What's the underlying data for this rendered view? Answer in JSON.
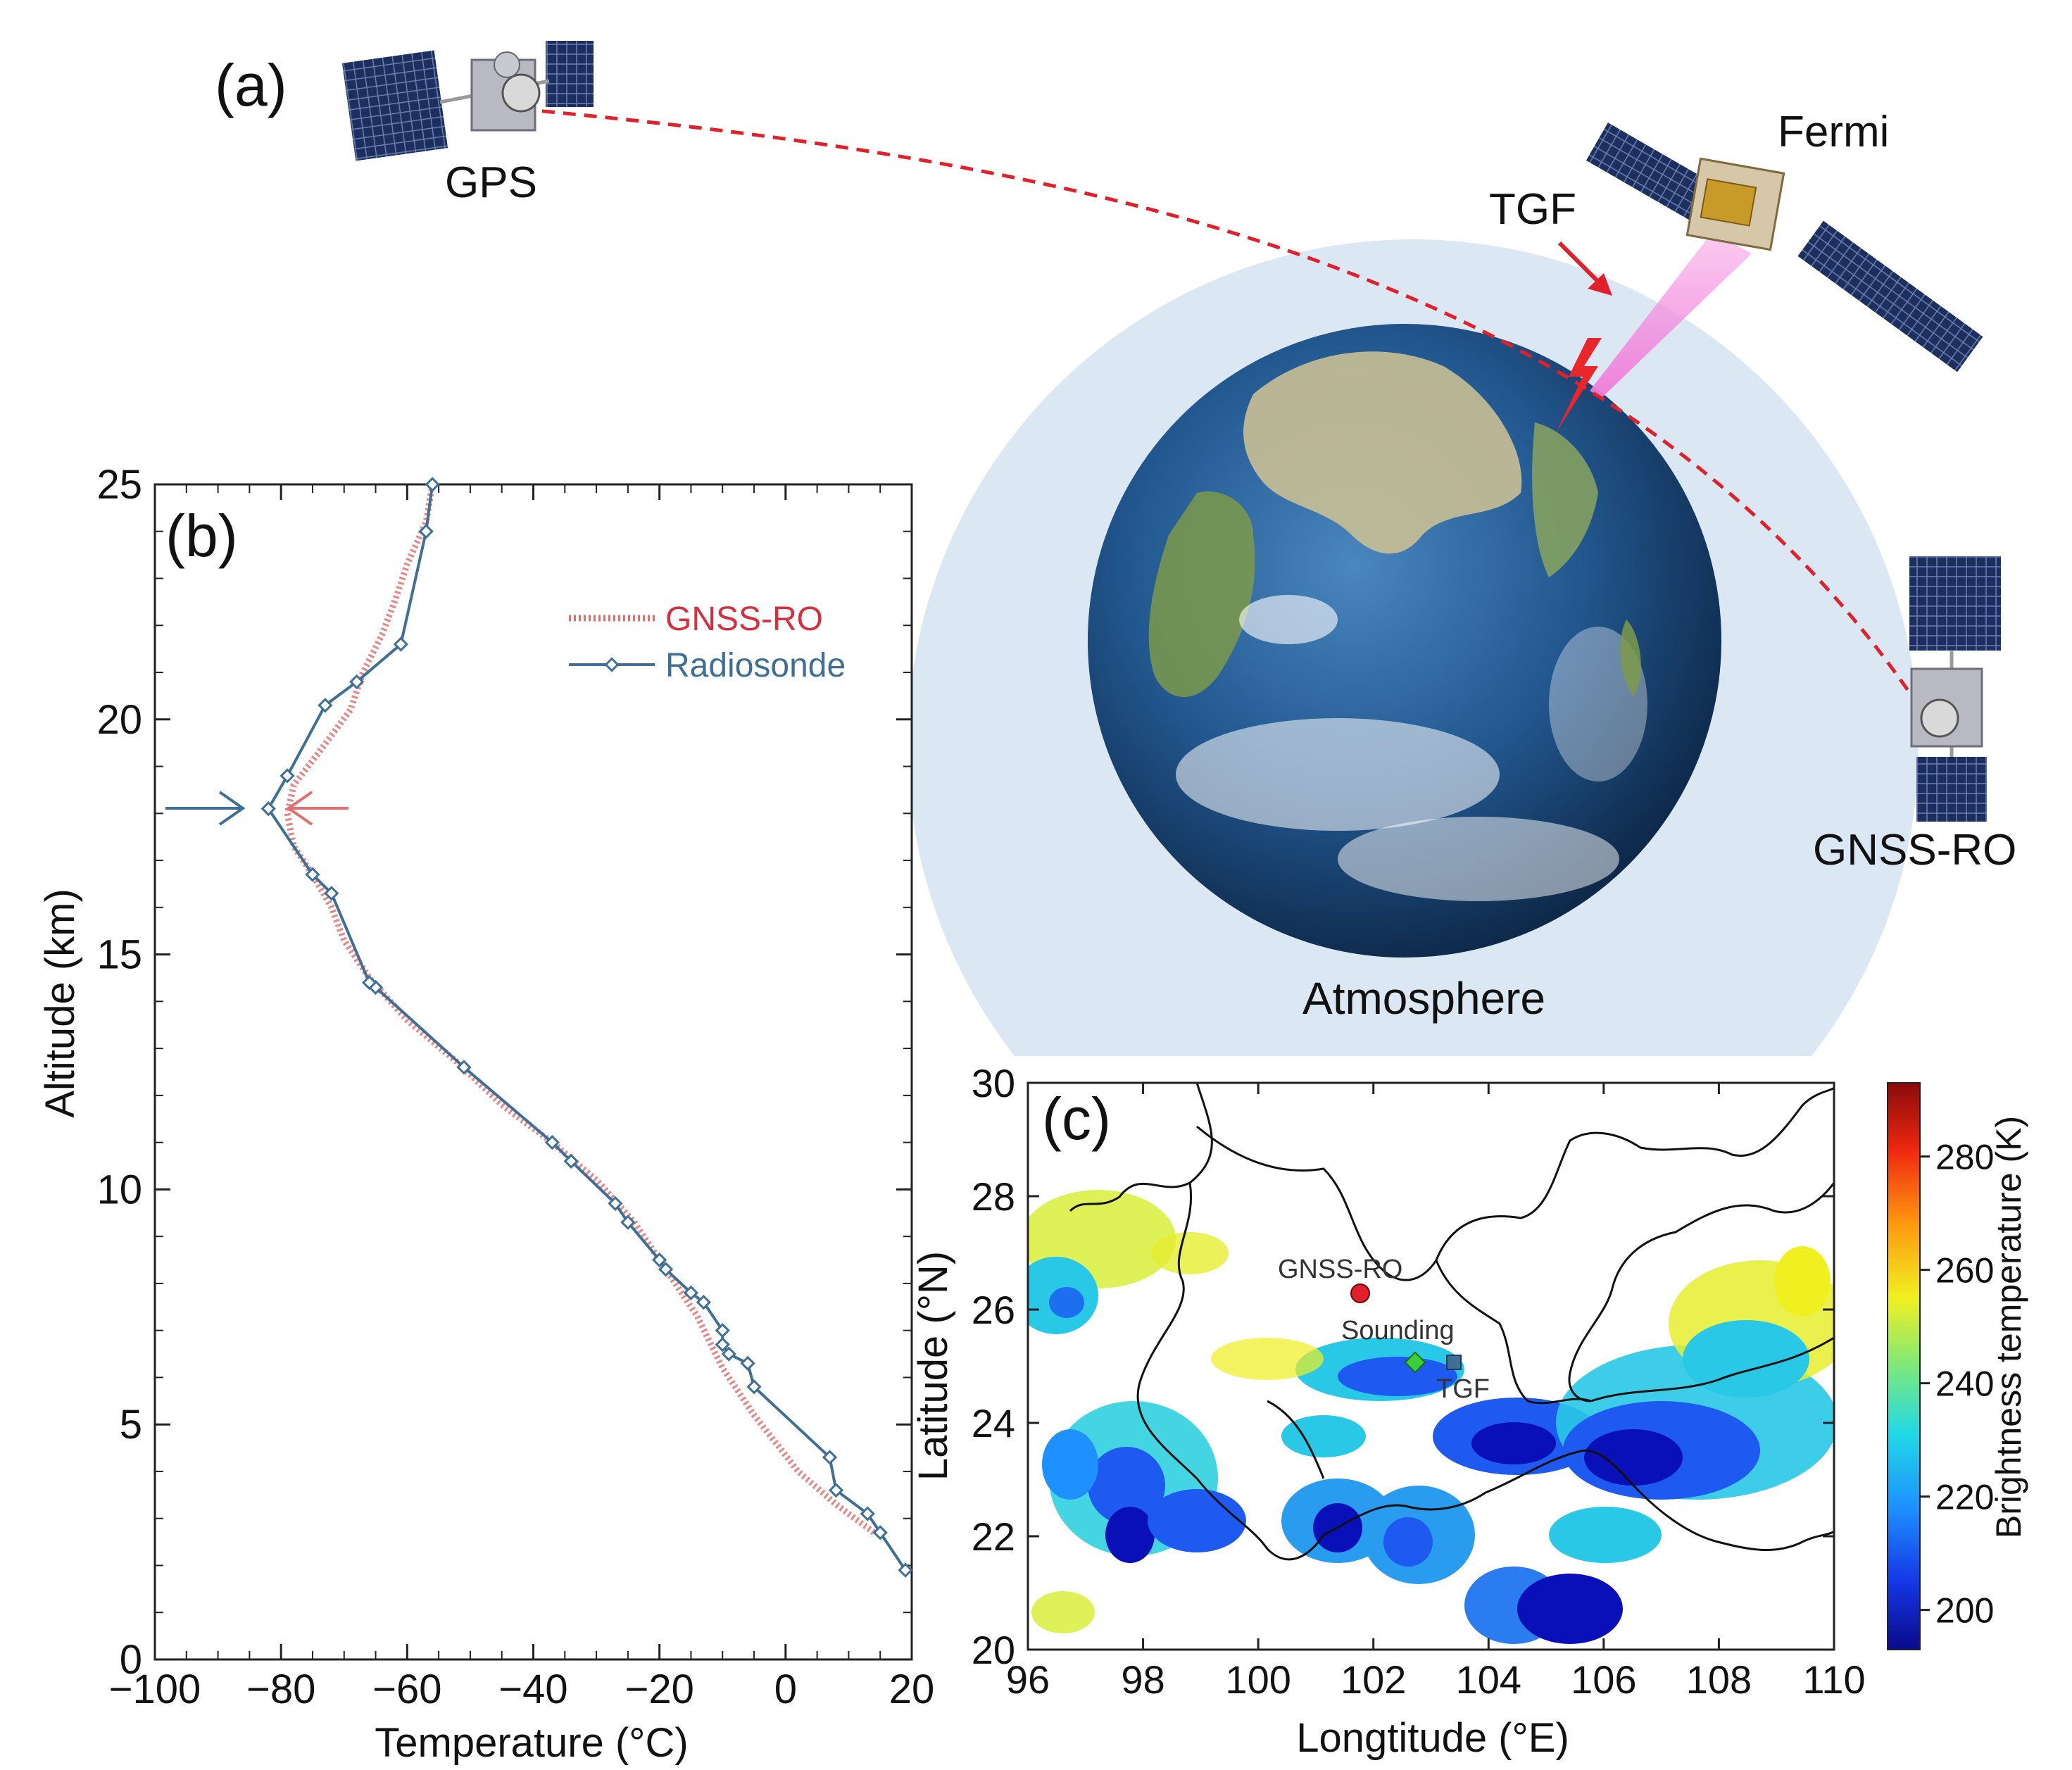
{
  "panel_a": {
    "label": "(a)",
    "gps_label": "GPS",
    "fermi_label": "Fermi",
    "tgf_label": "TGF",
    "gnss_label": "GNSS-RO",
    "atmosphere_label": "Atmosphere",
    "colors": {
      "atmosphere": "#dbe7f3",
      "ray": "#e0202a",
      "beam": "#f7a6e6",
      "ocean": "#1e4f86"
    }
  },
  "panel_b": {
    "label": "(b)",
    "chart_data": {
      "type": "line",
      "xlabel": "Temperature (°C)",
      "ylabel": "Altitude (km)",
      "xlim": [
        -100,
        20
      ],
      "ylim": [
        0,
        25
      ],
      "xticks": [
        "−100",
        "−80",
        "−60",
        "−40",
        "−20",
        "0",
        "20"
      ],
      "yticks": [
        "0",
        "5",
        "10",
        "15",
        "20",
        "25"
      ],
      "legend_position": "upper-right",
      "series": [
        {
          "name": "GNSS-RO",
          "color": "#e07070",
          "style": "dotted",
          "points": [
            [
              14,
              2.7
            ],
            [
              8,
              3.3
            ],
            [
              2,
              4.0
            ],
            [
              -5,
              5.2
            ],
            [
              -10,
              6.2
            ],
            [
              -14,
              7.3
            ],
            [
              -19,
              8.3
            ],
            [
              -24,
              9.3
            ],
            [
              -30,
              10.2
            ],
            [
              -37,
              11.0
            ],
            [
              -45,
              11.8
            ],
            [
              -52,
              12.7
            ],
            [
              -60,
              13.6
            ],
            [
              -66,
              14.5
            ],
            [
              -70,
              15.3
            ],
            [
              -72,
              16.0
            ],
            [
              -75,
              16.7
            ],
            [
              -78,
              17.3
            ],
            [
              -79,
              18.0
            ],
            [
              -78,
              18.6
            ],
            [
              -74,
              19.3
            ],
            [
              -69,
              20.2
            ],
            [
              -67,
              21.0
            ],
            [
              -64,
              21.8
            ],
            [
              -62,
              22.5
            ],
            [
              -60,
              23.3
            ],
            [
              -57,
              24.2
            ],
            [
              -56,
              25.0
            ]
          ]
        },
        {
          "name": "Radiosonde",
          "color": "#3f6f96",
          "style": "solid-diamond",
          "points": [
            [
              19,
              1.9
            ],
            [
              15,
              2.7
            ],
            [
              13,
              3.1
            ],
            [
              8,
              3.6
            ],
            [
              7,
              4.3
            ],
            [
              -5,
              5.8
            ],
            [
              -6,
              6.3
            ],
            [
              -9,
              6.5
            ],
            [
              -10,
              6.7
            ],
            [
              -10,
              7.0
            ],
            [
              -13,
              7.6
            ],
            [
              -15,
              7.8
            ],
            [
              -19,
              8.3
            ],
            [
              -20,
              8.5
            ],
            [
              -25,
              9.3
            ],
            [
              -27,
              9.7
            ],
            [
              -34,
              10.6
            ],
            [
              -37,
              11.0
            ],
            [
              -51,
              12.6
            ],
            [
              -65,
              14.3
            ],
            [
              -66,
              14.4
            ],
            [
              -72,
              16.3
            ],
            [
              -75,
              16.7
            ],
            [
              -82,
              18.1
            ],
            [
              -79,
              18.8
            ],
            [
              -73,
              20.3
            ],
            [
              -68,
              20.8
            ],
            [
              -61,
              21.6
            ],
            [
              -57,
              24.0
            ],
            [
              -56,
              25.0
            ]
          ]
        }
      ],
      "annotations": [
        {
          "type": "arrow",
          "color": "#3f6f96",
          "direction": "right",
          "altitude": 18.1
        },
        {
          "type": "arrow",
          "color": "#e07070",
          "direction": "left",
          "altitude": 18.1
        }
      ]
    }
  },
  "panel_c": {
    "label": "(c)",
    "chart_data": {
      "type": "heatmap",
      "xlabel": "Longtitude (°E)",
      "ylabel": "Latitude (°N)",
      "colorbar_label": "Brightness temperature (K)",
      "xlim": [
        96,
        110
      ],
      "ylim": [
        20,
        30
      ],
      "xticks": [
        "96",
        "98",
        "100",
        "102",
        "104",
        "106",
        "108",
        "110"
      ],
      "yticks": [
        "20",
        "22",
        "24",
        "26",
        "28",
        "30"
      ],
      "colorbar_ticks": [
        "200",
        "220",
        "240",
        "260",
        "280"
      ],
      "colorbar_range": [
        193,
        293
      ],
      "markers": [
        {
          "label": "GNSS-RO",
          "lon": 101.8,
          "lat": 26.2,
          "shape": "circle",
          "color": "#e0202a"
        },
        {
          "label": "Sounding",
          "lon": 102.7,
          "lat": 25.0,
          "shape": "diamond",
          "color": "#3ccf3c"
        },
        {
          "label": "TGF",
          "lon": 103.3,
          "lat": 25.0,
          "shape": "square",
          "color": "#3f6f96"
        }
      ]
    }
  }
}
